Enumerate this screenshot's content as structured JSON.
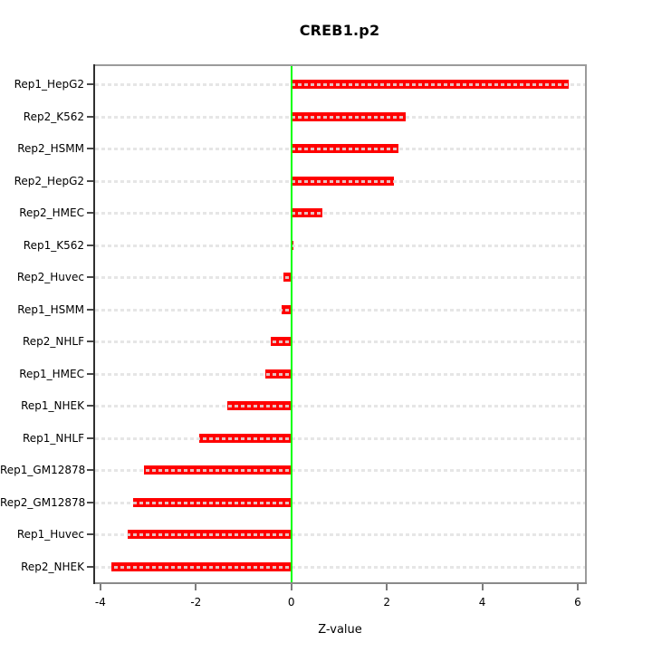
{
  "page": {
    "background": "#ffffff"
  },
  "chart_data": {
    "type": "bar",
    "orientation": "horizontal",
    "title": "CREB1.p2",
    "xlabel": "Z-value",
    "ylabel": "",
    "categories": [
      "Rep1_HepG2",
      "Rep2_K562",
      "Rep2_HSMM",
      "Rep2_HepG2",
      "Rep2_HMEC",
      "Rep1_K562",
      "Rep2_Huvec",
      "Rep1_HSMM",
      "Rep2_NHLF",
      "Rep1_HMEC",
      "Rep1_NHEK",
      "Rep1_NHLF",
      "Rep1_GM12878",
      "Rep2_GM12878",
      "Rep1_Huvec",
      "Rep2_NHEK"
    ],
    "values": [
      5.82,
      2.39,
      2.25,
      2.14,
      0.65,
      0.05,
      -0.17,
      -0.2,
      -0.43,
      -0.54,
      -1.35,
      -1.93,
      -3.08,
      -3.31,
      -3.43,
      -3.77
    ],
    "xlim": [
      -4.15,
      6.19
    ],
    "xticks": [
      -4,
      -2,
      0,
      2,
      4,
      6
    ],
    "bar_color": "#ff0000",
    "zero_line_color": "#00ff00",
    "grid": {
      "style": "dashed",
      "color_rgba": "rgba(226,226,226,0.85)",
      "per_category": true
    },
    "legend": "none"
  }
}
